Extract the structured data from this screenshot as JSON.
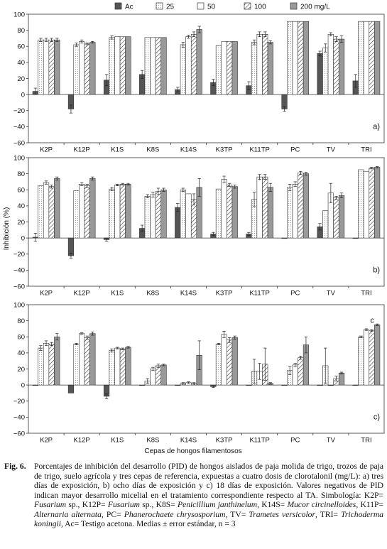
{
  "legend": [
    {
      "key": "Ac",
      "label": "Ac",
      "color": "#555555",
      "pattern": "solid"
    },
    {
      "key": "25",
      "label": "25",
      "color": "#ffffff",
      "pattern": "light"
    },
    {
      "key": "50",
      "label": "50",
      "color": "#ffffff",
      "pattern": "white"
    },
    {
      "key": "100",
      "label": "100",
      "color": "#ffffff",
      "pattern": "hatch"
    },
    {
      "key": "200",
      "label": "200 mg/L",
      "color": "#999999",
      "pattern": "gray"
    }
  ],
  "ylabel": "Inhibición (%)",
  "xlabel": "Cepas de hongos filamentosos",
  "chart_data": [
    {
      "type": "bar",
      "panel_label": "a)",
      "corner_label": "",
      "categories": [
        "K2P",
        "K12P",
        "K1S",
        "K8S",
        "K14S",
        "K3TP",
        "K11TP",
        "PC",
        "TV",
        "TRI"
      ],
      "ylim": [
        -60,
        100
      ],
      "yticks": [
        -60,
        -40,
        -20,
        0,
        20,
        40,
        60,
        80,
        100
      ],
      "grid": false,
      "series": [
        {
          "name": "Ac",
          "values": [
            4,
            -18,
            18,
            25,
            6,
            15,
            11,
            -18,
            51,
            17
          ],
          "errors": [
            4,
            5,
            7,
            5,
            3,
            4,
            5,
            3,
            3,
            8
          ]
        },
        {
          "name": "25",
          "values": [
            68,
            62,
            71,
            71,
            62,
            61,
            65,
            91,
            58,
            91
          ],
          "errors": [
            2,
            2,
            2,
            0,
            3,
            0,
            3,
            0,
            5,
            0
          ]
        },
        {
          "name": "50",
          "values": [
            68,
            66,
            72,
            71,
            72,
            66,
            75,
            91,
            75,
            91
          ],
          "errors": [
            2,
            2,
            0,
            0,
            2,
            0,
            3,
            0,
            2,
            0
          ]
        },
        {
          "name": "100",
          "values": [
            68,
            63,
            72,
            71,
            75,
            66,
            75,
            91,
            69,
            91
          ],
          "errors": [
            2,
            1,
            0,
            0,
            3,
            0,
            3,
            0,
            3,
            0
          ]
        },
        {
          "name": "200 mg/L",
          "values": [
            68,
            65,
            72,
            71,
            81,
            66,
            65,
            91,
            69,
            91
          ],
          "errors": [
            2,
            1,
            0,
            0,
            4,
            0,
            2,
            0,
            4,
            0
          ]
        }
      ]
    },
    {
      "type": "bar",
      "panel_label": "b)",
      "corner_label": "",
      "categories": [
        "K2P",
        "K12P",
        "K1S",
        "K8S",
        "K14S",
        "K3TP",
        "K11TP",
        "PC",
        "TV",
        "TRI"
      ],
      "ylim": [
        -60,
        100
      ],
      "yticks": [
        -60,
        -40,
        -20,
        0,
        20,
        40,
        60,
        80,
        100
      ],
      "grid": false,
      "series": [
        {
          "name": "Ac",
          "values": [
            1,
            -22,
            -2,
            12,
            38,
            5,
            5,
            0,
            14,
            0
          ],
          "errors": [
            5,
            3,
            2,
            4,
            5,
            2,
            2,
            0,
            4,
            0
          ]
        },
        {
          "name": "25",
          "values": [
            65,
            59,
            61,
            52,
            60,
            61,
            48,
            63,
            34,
            85
          ],
          "errors": [
            0,
            0,
            2,
            2,
            2,
            0,
            9,
            4,
            0,
            0
          ]
        },
        {
          "name": "50",
          "values": [
            69,
            67,
            66,
            54,
            55,
            73,
            76,
            67,
            56,
            83
          ],
          "errors": [
            2,
            2,
            1,
            3,
            0,
            4,
            3,
            3,
            12,
            0
          ]
        },
        {
          "name": "100",
          "values": [
            64,
            65,
            67,
            58,
            48,
            66,
            76,
            81,
            50,
            87
          ],
          "errors": [
            2,
            2,
            1,
            4,
            7,
            2,
            3,
            2,
            2,
            1
          ]
        },
        {
          "name": "200 mg/L",
          "values": [
            74,
            74,
            67,
            60,
            63,
            64,
            63,
            80,
            53,
            88
          ],
          "errors": [
            2,
            2,
            1,
            2,
            11,
            2,
            5,
            2,
            3,
            1
          ]
        }
      ]
    },
    {
      "type": "bar",
      "panel_label": "c)",
      "corner_label": "c",
      "categories": [
        "K2P",
        "K12P",
        "K1S",
        "K8S",
        "K14S",
        "K3TP",
        "K11TP",
        "PC",
        "TV",
        "TRI"
      ],
      "ylim": [
        -60,
        100
      ],
      "yticks": [
        -60,
        -40,
        -20,
        0,
        20,
        40,
        60,
        80,
        100
      ],
      "grid": false,
      "series": [
        {
          "name": "Ac",
          "values": [
            0,
            -10,
            -14,
            0,
            0,
            -2,
            0,
            0,
            0,
            0
          ],
          "errors": [
            0,
            0,
            3,
            0,
            0,
            1,
            0,
            0,
            0,
            0
          ]
        },
        {
          "name": "25",
          "values": [
            46,
            51,
            43,
            5,
            2,
            51,
            17,
            18,
            24,
            60
          ],
          "errors": [
            3,
            1,
            2,
            3,
            1,
            1,
            15,
            5,
            22,
            1
          ]
        },
        {
          "name": "50",
          "values": [
            52,
            64,
            46,
            20,
            3,
            63,
            17,
            25,
            0,
            69
          ],
          "errors": [
            3,
            1,
            1,
            2,
            1,
            4,
            10,
            2,
            0,
            1
          ]
        },
        {
          "name": "100",
          "values": [
            51,
            59,
            45,
            24,
            2,
            56,
            26,
            34,
            8,
            68
          ],
          "errors": [
            2,
            2,
            1,
            2,
            1,
            3,
            20,
            2,
            3,
            1
          ]
        },
        {
          "name": "200 mg/L",
          "values": [
            60,
            64,
            47,
            25,
            37,
            59,
            2,
            50,
            15,
            75
          ],
          "errors": [
            4,
            2,
            1,
            1,
            18,
            2,
            1,
            10,
            1,
            1
          ]
        }
      ]
    }
  ],
  "caption": {
    "fig_label": "Fig. 6.",
    "parts": [
      {
        "text": "Porcentajes de inhibición del desarrollo (PID) de hongos aislados de paja molida de trigo, trozos de paja de trigo, suelo agrícola y tres cepas de referencia, expuestas a cuatro dosis de clorotalonil (mg/L): a) tres días de exposición, b) ocho días de exposición y c) 18 días de exposición. Valores negativos de PID indican mayor desarrollo micelial en el tratamiento correspondiente respecto al TA. Simbología: K2P= ",
        "italic": false
      },
      {
        "text": "Fusarium",
        "italic": true
      },
      {
        "text": " sp., K12P= ",
        "italic": false
      },
      {
        "text": "Fusarium",
        "italic": true
      },
      {
        "text": " sp., K8S= ",
        "italic": false
      },
      {
        "text": "Penicillium janthinelum",
        "italic": true
      },
      {
        "text": ", K14S= ",
        "italic": false
      },
      {
        "text": "Mucor circinelloides",
        "italic": true
      },
      {
        "text": ", K11P= ",
        "italic": false
      },
      {
        "text": "Alternaria alternata",
        "italic": true
      },
      {
        "text": ", PC= ",
        "italic": false
      },
      {
        "text": "Phanerochaete chrysosporium",
        "italic": true
      },
      {
        "text": ", TV= ",
        "italic": false
      },
      {
        "text": "Trametes versicolor",
        "italic": true
      },
      {
        "text": ", TRI= ",
        "italic": false
      },
      {
        "text": "Trichoderma koningii",
        "italic": true
      },
      {
        "text": ", Ac= Testigo acetona. Medias ± error estándar, n = 3",
        "italic": false
      }
    ]
  }
}
